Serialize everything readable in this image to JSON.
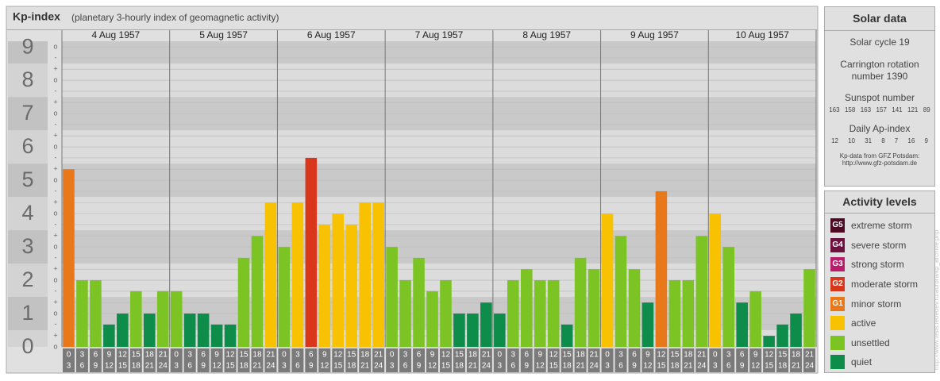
{
  "chart_data": {
    "type": "bar",
    "title": "Kp-index",
    "subtitle": "(planetary 3-hourly index of geomagnetic activity)",
    "ylim": [
      0,
      9.17
    ],
    "yticks": [
      0,
      1,
      2,
      3,
      4,
      5,
      6,
      7,
      8,
      9
    ],
    "minor_yticks": [
      {
        "value": 0,
        "label": "o"
      },
      {
        "value": 0.33,
        "label": "+"
      },
      {
        "value": 0.67,
        "label": "-"
      },
      {
        "value": 1,
        "label": "o"
      },
      {
        "value": 1.33,
        "label": "+"
      },
      {
        "value": 1.67,
        "label": "-"
      },
      {
        "value": 2,
        "label": "o"
      },
      {
        "value": 2.33,
        "label": "+"
      },
      {
        "value": 2.67,
        "label": "-"
      },
      {
        "value": 3,
        "label": "o"
      },
      {
        "value": 3.33,
        "label": "+"
      },
      {
        "value": 3.67,
        "label": "-"
      },
      {
        "value": 4,
        "label": "o"
      },
      {
        "value": 4.33,
        "label": "+"
      },
      {
        "value": 4.67,
        "label": "-"
      },
      {
        "value": 5,
        "label": "o"
      },
      {
        "value": 5.33,
        "label": "+"
      },
      {
        "value": 5.67,
        "label": "-"
      },
      {
        "value": 6,
        "label": "o"
      },
      {
        "value": 6.33,
        "label": "+"
      },
      {
        "value": 6.67,
        "label": "-"
      },
      {
        "value": 7,
        "label": "o"
      },
      {
        "value": 7.33,
        "label": "+"
      },
      {
        "value": 7.67,
        "label": "-"
      },
      {
        "value": 8,
        "label": "o"
      },
      {
        "value": 8.33,
        "label": "+"
      },
      {
        "value": 8.67,
        "label": "-"
      },
      {
        "value": 9,
        "label": "o"
      }
    ],
    "grid": true,
    "intervals": [
      [
        0,
        3
      ],
      [
        3,
        6
      ],
      [
        6,
        9
      ],
      [
        9,
        12
      ],
      [
        12,
        15
      ],
      [
        15,
        18
      ],
      [
        18,
        21
      ],
      [
        21,
        24
      ]
    ],
    "days": [
      {
        "label": "4 Aug 1957",
        "values": [
          5.33,
          2,
          2,
          0.67,
          1,
          1.67,
          1,
          1.67
        ],
        "colors": [
          "#e8781a",
          "#7cc423",
          "#7cc423",
          "#0e8c4a",
          "#0e8c4a",
          "#7cc423",
          "#0e8c4a",
          "#7cc423"
        ]
      },
      {
        "label": "5 Aug 1957",
        "values": [
          1.67,
          1,
          1,
          0.67,
          0.67,
          2.67,
          3.33,
          4.33
        ],
        "colors": [
          "#7cc423",
          "#0e8c4a",
          "#0e8c4a",
          "#0e8c4a",
          "#0e8c4a",
          "#7cc423",
          "#7cc423",
          "#f8c200"
        ]
      },
      {
        "label": "6 Aug 1957",
        "values": [
          3,
          4.33,
          5.67,
          3.67,
          4,
          3.67,
          4.33,
          4.33
        ],
        "colors": [
          "#7cc423",
          "#f8c200",
          "#d8371c",
          "#f8c200",
          "#f8c200",
          "#f8c200",
          "#f8c200",
          "#f8c200"
        ]
      },
      {
        "label": "7 Aug 1957",
        "values": [
          3,
          2,
          2.67,
          1.67,
          2,
          1,
          1,
          1.33
        ],
        "colors": [
          "#7cc423",
          "#7cc423",
          "#7cc423",
          "#7cc423",
          "#7cc423",
          "#0e8c4a",
          "#0e8c4a",
          "#0e8c4a"
        ]
      },
      {
        "label": "8 Aug 1957",
        "values": [
          1,
          2,
          2.33,
          2,
          2,
          0.67,
          2.67,
          2.33
        ],
        "colors": [
          "#0e8c4a",
          "#7cc423",
          "#7cc423",
          "#7cc423",
          "#7cc423",
          "#0e8c4a",
          "#7cc423",
          "#7cc423"
        ]
      },
      {
        "label": "9 Aug 1957",
        "values": [
          4,
          3.33,
          2.33,
          1.33,
          4.67,
          2,
          2,
          3.33
        ],
        "colors": [
          "#f8c200",
          "#7cc423",
          "#7cc423",
          "#0e8c4a",
          "#e8781a",
          "#7cc423",
          "#7cc423",
          "#7cc423"
        ]
      },
      {
        "label": "10 Aug 1957",
        "values": [
          4,
          3,
          1.33,
          1.67,
          0.33,
          0.67,
          1,
          2.33
        ],
        "colors": [
          "#f8c200",
          "#7cc423",
          "#0e8c4a",
          "#7cc423",
          "#0e8c4a",
          "#0e8c4a",
          "#0e8c4a",
          "#7cc423"
        ]
      }
    ]
  },
  "solar_data": {
    "title": "Solar data",
    "cycle": "Solar cycle 19",
    "carrington": "Carrington rotation number 1390",
    "sunspot_title": "Sunspot number",
    "sunspot": [
      163,
      158,
      163,
      157,
      141,
      121,
      89
    ],
    "ap_title": "Daily Ap-index",
    "ap": [
      12,
      10,
      31,
      8,
      7,
      16,
      9
    ],
    "source": "Kp-data from GFZ Potsdam:",
    "source_url": "http://www.gfz-potsdam.de"
  },
  "activity_levels": {
    "title": "Activity levels",
    "items": [
      {
        "code": "G5",
        "label": "extreme storm",
        "color": "#4d0a22"
      },
      {
        "code": "G4",
        "label": "severe storm",
        "color": "#6e1040"
      },
      {
        "code": "G3",
        "label": "strong storm",
        "color": "#b81c6a"
      },
      {
        "code": "G2",
        "label": "moderate storm",
        "color": "#d8371c"
      },
      {
        "code": "G1",
        "label": "minor storm",
        "color": "#e8781a"
      },
      {
        "label": "active",
        "color": "#f8c200"
      },
      {
        "label": "unsettled",
        "color": "#7cc423"
      },
      {
        "label": "quiet",
        "color": "#0e8c4a"
      }
    ]
  },
  "footer_url": "http://www.tesis.lebedev.ru/aurora/kp_archive.php"
}
